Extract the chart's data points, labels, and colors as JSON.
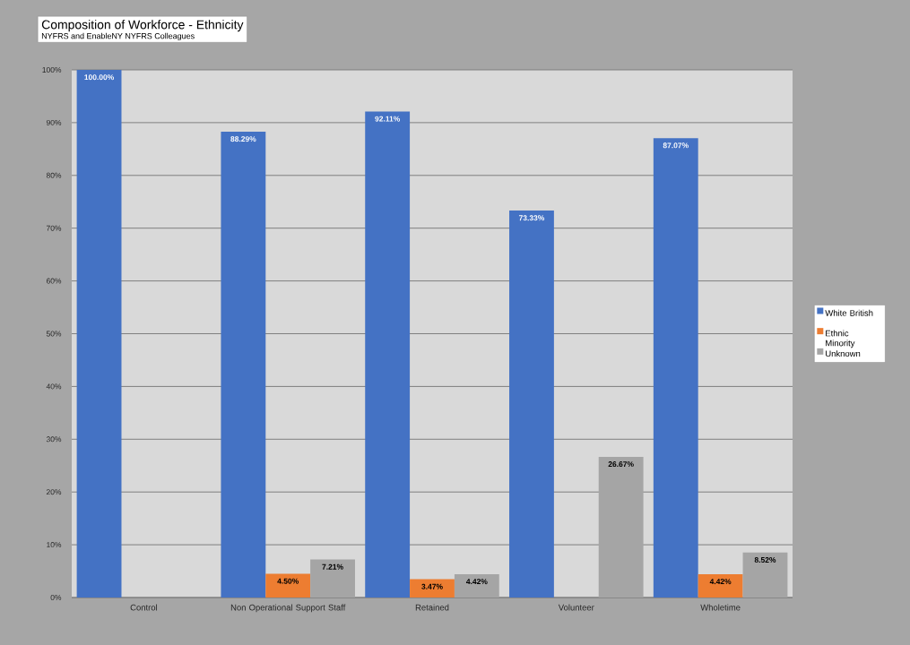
{
  "chart_data": {
    "type": "bar",
    "title": "Composition of Workforce - Ethnicity",
    "subtitle": "NYFRS and EnableNY NYFRS Colleagues",
    "categories": [
      "Control",
      "Non Operational Support Staff",
      "Retained",
      "Volunteer",
      "Wholetime"
    ],
    "series": [
      {
        "name": "White British",
        "color": "#4472c4",
        "values": [
          100.0,
          88.29,
          92.11,
          73.33,
          87.07
        ],
        "value_labels": [
          "100.00%",
          "88.29%",
          "92.11%",
          "73.33%",
          "87.07%"
        ]
      },
      {
        "name": "Ethnic Minority",
        "color": "#ed7d31",
        "values": [
          null,
          4.5,
          3.47,
          null,
          4.42
        ],
        "value_labels": [
          null,
          "4.50%",
          "3.47%",
          null,
          "4.42%"
        ]
      },
      {
        "name": "Unknown",
        "color": "#a5a5a5",
        "values": [
          null,
          7.21,
          4.42,
          26.67,
          8.52
        ],
        "value_labels": [
          null,
          "7.21%",
          "4.42%",
          "26.67%",
          "8.52%"
        ]
      }
    ],
    "ylim": [
      0,
      100
    ],
    "yticks": [
      {
        "value": 0,
        "label": "0%"
      },
      {
        "value": 10,
        "label": "10%"
      },
      {
        "value": 20,
        "label": "20%"
      },
      {
        "value": 30,
        "label": "30%"
      },
      {
        "value": 40,
        "label": "40%"
      },
      {
        "value": 50,
        "label": "50%"
      },
      {
        "value": 60,
        "label": "60%"
      },
      {
        "value": 70,
        "label": "70%"
      },
      {
        "value": 80,
        "label": "80%"
      },
      {
        "value": 90,
        "label": "90%"
      },
      {
        "value": 100,
        "label": "100%"
      }
    ],
    "grid": "y",
    "legend": "right"
  }
}
